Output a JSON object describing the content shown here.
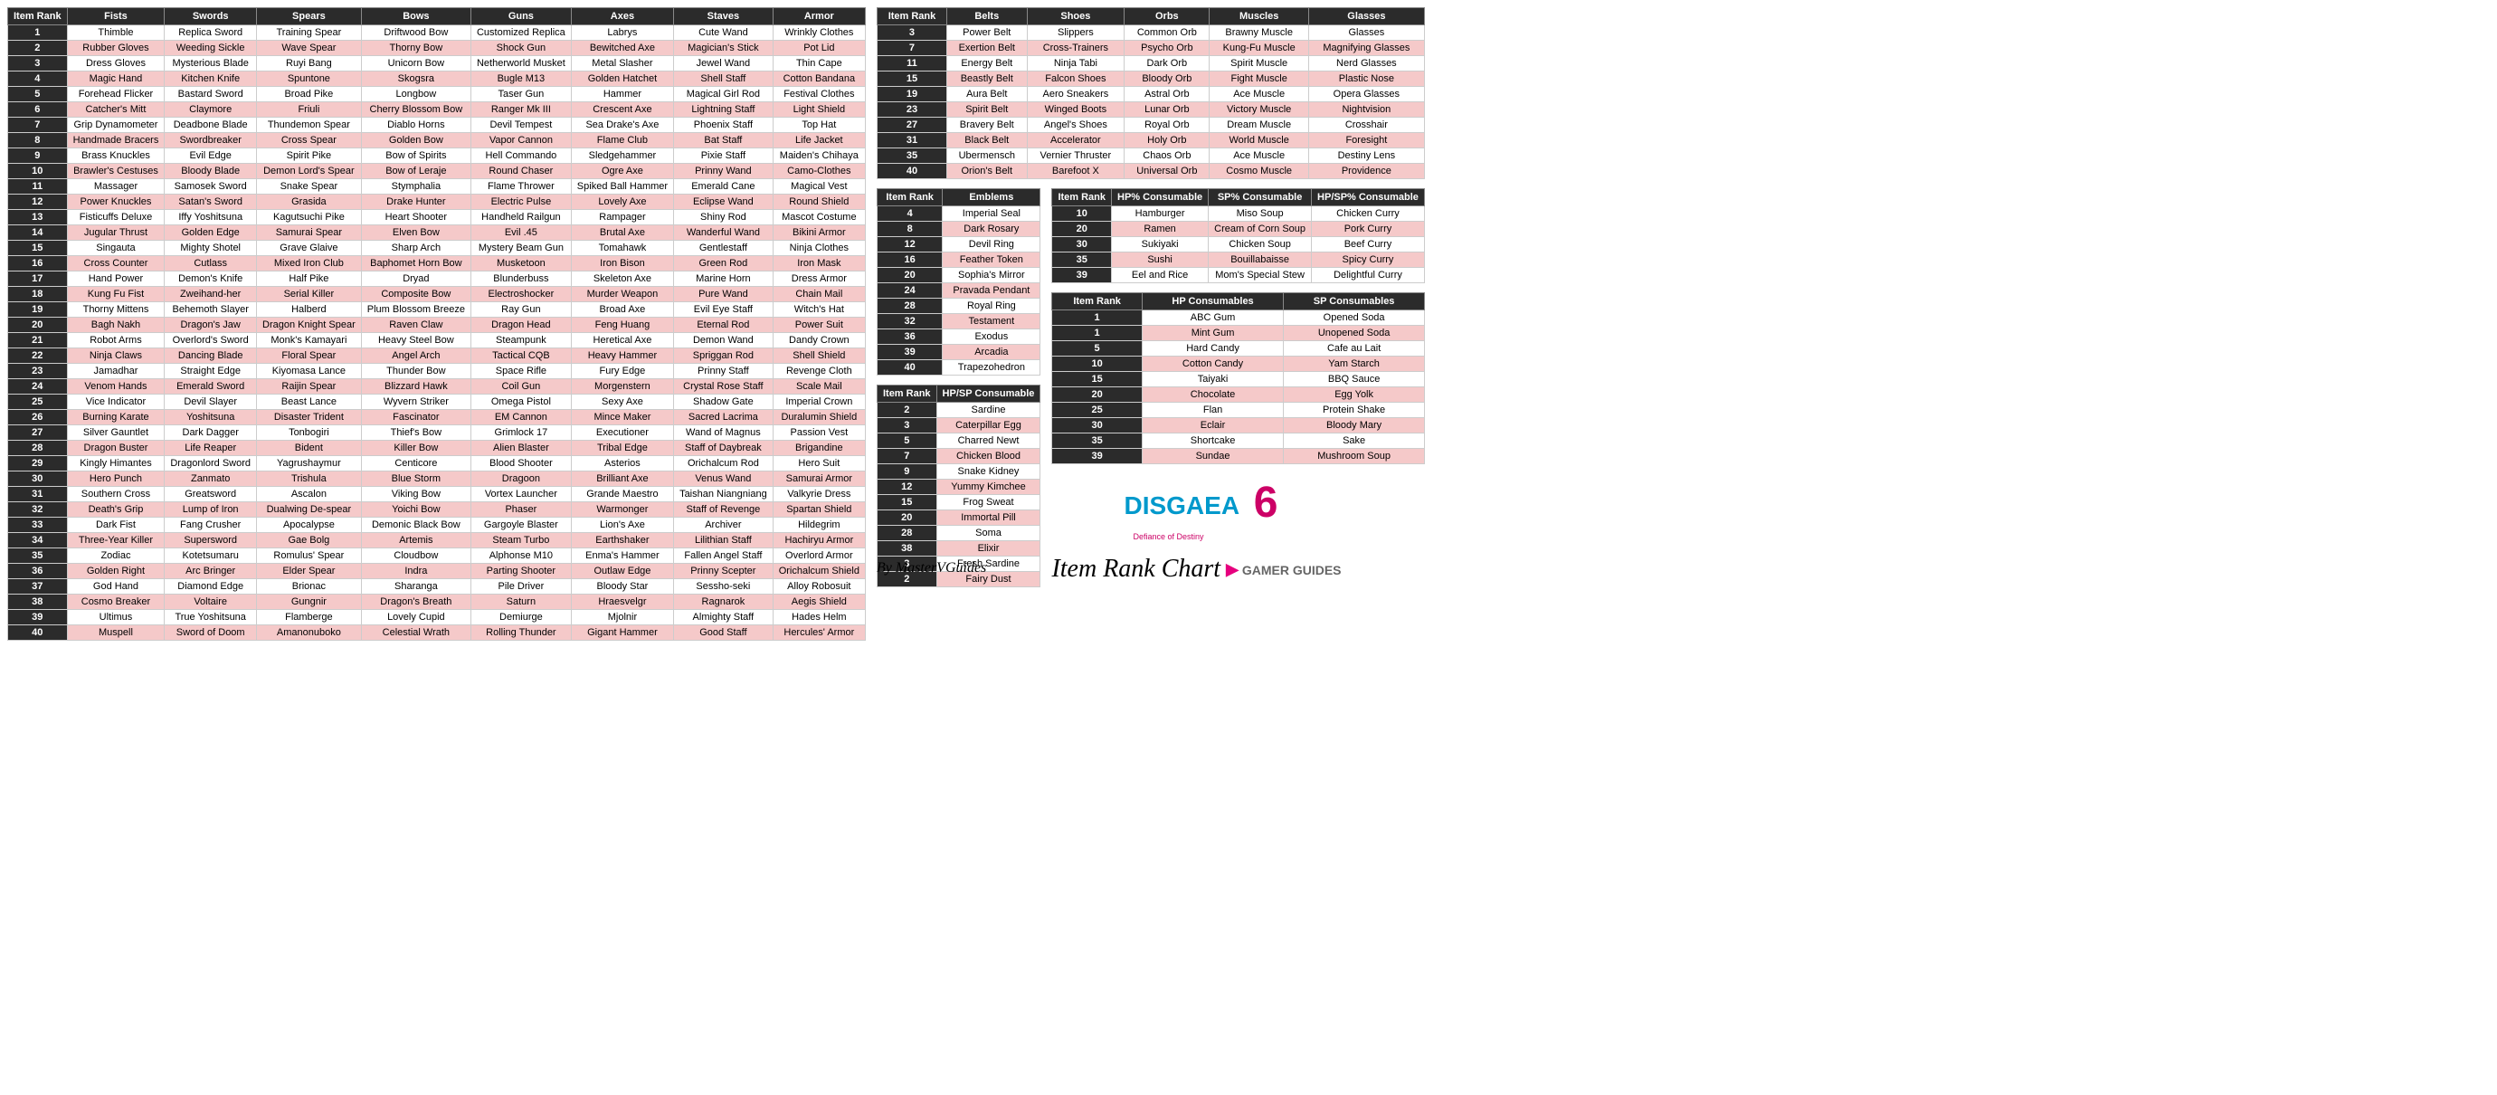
{
  "credit": "By MasterVGuides",
  "title": "Item Rank Chart",
  "logo": {
    "name": "DISGAEA",
    "num": "6",
    "sub": "Defiance of Destiny"
  },
  "guides_brand": "GAMER GUIDES",
  "main": {
    "headers": [
      "Item Rank",
      "Fists",
      "Swords",
      "Spears",
      "Bows",
      "Guns",
      "Axes",
      "Staves",
      "Armor"
    ],
    "rows": [
      [
        "1",
        "Thimble",
        "Replica Sword",
        "Training Spear",
        "Driftwood Bow",
        "Customized Replica",
        "Labrys",
        "Cute Wand",
        "Wrinkly Clothes"
      ],
      [
        "2",
        "Rubber Gloves",
        "Weeding Sickle",
        "Wave Spear",
        "Thorny Bow",
        "Shock Gun",
        "Bewitched Axe",
        "Magician's Stick",
        "Pot Lid"
      ],
      [
        "3",
        "Dress Gloves",
        "Mysterious Blade",
        "Ruyi Bang",
        "Unicorn Bow",
        "Netherworld Musket",
        "Metal Slasher",
        "Jewel Wand",
        "Thin Cape"
      ],
      [
        "4",
        "Magic Hand",
        "Kitchen Knife",
        "Spuntone",
        "Skogsra",
        "Bugle M13",
        "Golden Hatchet",
        "Shell Staff",
        "Cotton Bandana"
      ],
      [
        "5",
        "Forehead Flicker",
        "Bastard Sword",
        "Broad Pike",
        "Longbow",
        "Taser Gun",
        "Hammer",
        "Magical Girl Rod",
        "Festival Clothes"
      ],
      [
        "6",
        "Catcher's Mitt",
        "Claymore",
        "Friuli",
        "Cherry Blossom Bow",
        "Ranger Mk III",
        "Crescent Axe",
        "Lightning Staff",
        "Light Shield"
      ],
      [
        "7",
        "Grip Dynamometer",
        "Deadbone Blade",
        "Thundemon Spear",
        "Diablo Horns",
        "Devil Tempest",
        "Sea Drake's Axe",
        "Phoenix Staff",
        "Top Hat"
      ],
      [
        "8",
        "Handmade Bracers",
        "Swordbreaker",
        "Cross Spear",
        "Golden Bow",
        "Vapor Cannon",
        "Flame Club",
        "Bat Staff",
        "Life Jacket"
      ],
      [
        "9",
        "Brass Knuckles",
        "Evil Edge",
        "Spirit Pike",
        "Bow of Spirits",
        "Hell Commando",
        "Sledgehammer",
        "Pixie Staff",
        "Maiden's Chihaya"
      ],
      [
        "10",
        "Brawler's Cestuses",
        "Bloody Blade",
        "Demon Lord's Spear",
        "Bow of Leraje",
        "Round Chaser",
        "Ogre Axe",
        "Prinny Wand",
        "Camo-Clothes"
      ],
      [
        "11",
        "Massager",
        "Samosek Sword",
        "Snake Spear",
        "Stymphalia",
        "Flame Thrower",
        "Spiked Ball Hammer",
        "Emerald Cane",
        "Magical Vest"
      ],
      [
        "12",
        "Power Knuckles",
        "Satan's Sword",
        "Grasida",
        "Drake Hunter",
        "Electric Pulse",
        "Lovely Axe",
        "Eclipse Wand",
        "Round Shield"
      ],
      [
        "13",
        "Fisticuffs Deluxe",
        "Iffy Yoshitsuna",
        "Kagutsuchi Pike",
        "Heart Shooter",
        "Handheld Railgun",
        "Rampager",
        "Shiny Rod",
        "Mascot Costume"
      ],
      [
        "14",
        "Jugular Thrust",
        "Golden Edge",
        "Samurai Spear",
        "Elven Bow",
        "Evil .45",
        "Brutal Axe",
        "Wanderful Wand",
        "Bikini Armor"
      ],
      [
        "15",
        "Singauta",
        "Mighty Shotel",
        "Grave Glaive",
        "Sharp Arch",
        "Mystery Beam Gun",
        "Tomahawk",
        "Gentlestaff",
        "Ninja Clothes"
      ],
      [
        "16",
        "Cross Counter",
        "Cutlass",
        "Mixed Iron Club",
        "Baphomet Horn Bow",
        "Musketoon",
        "Iron Bison",
        "Green Rod",
        "Iron Mask"
      ],
      [
        "17",
        "Hand Power",
        "Demon's Knife",
        "Half Pike",
        "Dryad",
        "Blunderbuss",
        "Skeleton Axe",
        "Marine Horn",
        "Dress Armor"
      ],
      [
        "18",
        "Kung Fu Fist",
        "Zweihand-her",
        "Serial Killer",
        "Composite Bow",
        "Electroshocker",
        "Murder Weapon",
        "Pure Wand",
        "Chain Mail"
      ],
      [
        "19",
        "Thorny Mittens",
        "Behemoth Slayer",
        "Halberd",
        "Plum Blossom Breeze",
        "Ray Gun",
        "Broad Axe",
        "Evil Eye Staff",
        "Witch's Hat"
      ],
      [
        "20",
        "Bagh Nakh",
        "Dragon's Jaw",
        "Dragon Knight Spear",
        "Raven Claw",
        "Dragon Head",
        "Feng Huang",
        "Eternal Rod",
        "Power Suit"
      ],
      [
        "21",
        "Robot Arms",
        "Overlord's Sword",
        "Monk's Kamayari",
        "Heavy Steel Bow",
        "Steampunk",
        "Heretical Axe",
        "Demon Wand",
        "Dandy Crown"
      ],
      [
        "22",
        "Ninja Claws",
        "Dancing Blade",
        "Floral Spear",
        "Angel Arch",
        "Tactical CQB",
        "Heavy Hammer",
        "Spriggan Rod",
        "Shell Shield"
      ],
      [
        "23",
        "Jamadhar",
        "Straight Edge",
        "Kiyomasa Lance",
        "Thunder Bow",
        "Space Rifle",
        "Fury Edge",
        "Prinny Staff",
        "Revenge Cloth"
      ],
      [
        "24",
        "Venom Hands",
        "Emerald Sword",
        "Raijin Spear",
        "Blizzard Hawk",
        "Coil Gun",
        "Morgenstern",
        "Crystal Rose Staff",
        "Scale Mail"
      ],
      [
        "25",
        "Vice Indicator",
        "Devil Slayer",
        "Beast Lance",
        "Wyvern Striker",
        "Omega Pistol",
        "Sexy Axe",
        "Shadow Gate",
        "Imperial Crown"
      ],
      [
        "26",
        "Burning Karate",
        "Yoshitsuna",
        "Disaster Trident",
        "Fascinator",
        "EM Cannon",
        "Mince Maker",
        "Sacred Lacrima",
        "Duralumin Shield"
      ],
      [
        "27",
        "Silver Gauntlet",
        "Dark Dagger",
        "Tonbogiri",
        "Thief's Bow",
        "Grimlock 17",
        "Executioner",
        "Wand of Magnus",
        "Passion Vest"
      ],
      [
        "28",
        "Dragon Buster",
        "Life Reaper",
        "Bident",
        "Killer Bow",
        "Alien Blaster",
        "Tribal Edge",
        "Staff of Daybreak",
        "Brigandine"
      ],
      [
        "29",
        "Kingly Himantes",
        "Dragonlord Sword",
        "Yagrushaymur",
        "Centicore",
        "Blood Shooter",
        "Asterios",
        "Orichalcum Rod",
        "Hero Suit"
      ],
      [
        "30",
        "Hero Punch",
        "Zanmato",
        "Trishula",
        "Blue Storm",
        "Dragoon",
        "Brilliant Axe",
        "Venus Wand",
        "Samurai Armor"
      ],
      [
        "31",
        "Southern Cross",
        "Greatsword",
        "Ascalon",
        "Viking Bow",
        "Vortex Launcher",
        "Grande Maestro",
        "Taishan Niangniang",
        "Valkyrie Dress"
      ],
      [
        "32",
        "Death's Grip",
        "Lump of Iron",
        "Dualwing De-spear",
        "Yoichi Bow",
        "Phaser",
        "Warmonger",
        "Staff of Revenge",
        "Spartan Shield"
      ],
      [
        "33",
        "Dark Fist",
        "Fang Crusher",
        "Apocalypse",
        "Demonic Black Bow",
        "Gargoyle Blaster",
        "Lion's Axe",
        "Archiver",
        "Hildegrim"
      ],
      [
        "34",
        "Three-Year Killer",
        "Supersword",
        "Gae Bolg",
        "Artemis",
        "Steam Turbo",
        "Earthshaker",
        "Lilithian Staff",
        "Hachiryu Armor"
      ],
      [
        "35",
        "Zodiac",
        "Kotetsumaru",
        "Romulus' Spear",
        "Cloudbow",
        "Alphonse M10",
        "Enma's Hammer",
        "Fallen Angel Staff",
        "Overlord Armor"
      ],
      [
        "36",
        "Golden Right",
        "Arc Bringer",
        "Elder Spear",
        "Indra",
        "Parting Shooter",
        "Outlaw Edge",
        "Prinny Scepter",
        "Orichalcum Shield"
      ],
      [
        "37",
        "God Hand",
        "Diamond Edge",
        "Brionac",
        "Sharanga",
        "Pile Driver",
        "Bloody Star",
        "Sessho-seki",
        "Alloy Robosuit"
      ],
      [
        "38",
        "Cosmo Breaker",
        "Voltaire",
        "Gungnir",
        "Dragon's Breath",
        "Saturn",
        "Hraesvelgr",
        "Ragnarok",
        "Aegis Shield"
      ],
      [
        "39",
        "Ultimus",
        "True Yoshitsuna",
        "Flamberge",
        "Lovely Cupid",
        "Demiurge",
        "Mjolnir",
        "Almighty Staff",
        "Hades Helm"
      ],
      [
        "40",
        "Muspell",
        "Sword of Doom",
        "Amanonuboko",
        "Celestial Wrath",
        "Rolling Thunder",
        "Gigant Hammer",
        "Good Staff",
        "Hercules' Armor"
      ]
    ]
  },
  "accessories": {
    "headers": [
      "Item Rank",
      "Belts",
      "Shoes",
      "Orbs",
      "Muscles",
      "Glasses"
    ],
    "rows": [
      [
        "3",
        "Power Belt",
        "Slippers",
        "Common Orb",
        "Brawny Muscle",
        "Glasses"
      ],
      [
        "7",
        "Exertion Belt",
        "Cross-Trainers",
        "Psycho Orb",
        "Kung-Fu Muscle",
        "Magnifying Glasses"
      ],
      [
        "11",
        "Energy Belt",
        "Ninja Tabi",
        "Dark Orb",
        "Spirit Muscle",
        "Nerd Glasses"
      ],
      [
        "15",
        "Beastly Belt",
        "Falcon Shoes",
        "Bloody Orb",
        "Fight Muscle",
        "Plastic Nose"
      ],
      [
        "19",
        "Aura Belt",
        "Aero Sneakers",
        "Astral Orb",
        "Ace Muscle",
        "Opera Glasses"
      ],
      [
        "23",
        "Spirit Belt",
        "Winged Boots",
        "Lunar Orb",
        "Victory Muscle",
        "Nightvision"
      ],
      [
        "27",
        "Bravery Belt",
        "Angel's Shoes",
        "Royal Orb",
        "Dream Muscle",
        "Crosshair"
      ],
      [
        "31",
        "Black Belt",
        "Accelerator",
        "Holy Orb",
        "World Muscle",
        "Foresight"
      ],
      [
        "35",
        "Ubermensch",
        "Vernier Thruster",
        "Chaos Orb",
        "Ace Muscle",
        "Destiny Lens"
      ],
      [
        "40",
        "Orion's Belt",
        "Barefoot X",
        "Universal Orb",
        "Cosmo Muscle",
        "Providence"
      ]
    ]
  },
  "emblems": {
    "headers": [
      "Item Rank",
      "Emblems"
    ],
    "rows": [
      [
        "4",
        "Imperial Seal"
      ],
      [
        "8",
        "Dark Rosary"
      ],
      [
        "12",
        "Devil Ring"
      ],
      [
        "16",
        "Feather Token"
      ],
      [
        "20",
        "Sophia's Mirror"
      ],
      [
        "24",
        "Pravada Pendant"
      ],
      [
        "28",
        "Royal Ring"
      ],
      [
        "32",
        "Testament"
      ],
      [
        "36",
        "Exodus"
      ],
      [
        "39",
        "Arcadia"
      ],
      [
        "40",
        "Trapezohedron"
      ]
    ]
  },
  "hpsp": {
    "headers": [
      "Item Rank",
      "HP/SP Consumable"
    ],
    "rows": [
      [
        "2",
        "Sardine"
      ],
      [
        "3",
        "Caterpillar Egg"
      ],
      [
        "5",
        "Charred Newt"
      ],
      [
        "7",
        "Chicken Blood"
      ],
      [
        "9",
        "Snake Kidney"
      ],
      [
        "12",
        "Yummy Kimchee"
      ],
      [
        "15",
        "Frog Sweat"
      ],
      [
        "20",
        "Immortal Pill"
      ],
      [
        "28",
        "Soma"
      ],
      [
        "38",
        "Elixir"
      ],
      [
        "3",
        "Fresh Sardine"
      ],
      [
        "2",
        "Fairy Dust"
      ]
    ]
  },
  "pct_consumables": {
    "headers": [
      "Item Rank",
      "HP% Consumable",
      "SP% Consumable",
      "HP/SP% Consumable"
    ],
    "rows": [
      [
        "10",
        "Hamburger",
        "Miso Soup",
        "Chicken Curry"
      ],
      [
        "20",
        "Ramen",
        "Cream of Corn Soup",
        "Pork Curry"
      ],
      [
        "30",
        "Sukiyaki",
        "Chicken Soup",
        "Beef Curry"
      ],
      [
        "35",
        "Sushi",
        "Bouillabaisse",
        "Spicy Curry"
      ],
      [
        "39",
        "Eel and Rice",
        "Mom's Special Stew",
        "Delightful Curry"
      ]
    ]
  },
  "flat_consumables": {
    "headers": [
      "Item Rank",
      "HP Consumables",
      "SP Consumables"
    ],
    "rows": [
      [
        "1",
        "ABC Gum",
        "Opened Soda"
      ],
      [
        "1",
        "Mint Gum",
        "Unopened Soda"
      ],
      [
        "5",
        "Hard Candy",
        "Cafe au Lait"
      ],
      [
        "10",
        "Cotton Candy",
        "Yam Starch"
      ],
      [
        "15",
        "Taiyaki",
        "BBQ Sauce"
      ],
      [
        "20",
        "Chocolate",
        "Egg Yolk"
      ],
      [
        "25",
        "Flan",
        "Protein Shake"
      ],
      [
        "30",
        "Eclair",
        "Bloody Mary"
      ],
      [
        "35",
        "Shortcake",
        "Sake"
      ],
      [
        "39",
        "Sundae",
        "Mushroom Soup"
      ]
    ]
  }
}
